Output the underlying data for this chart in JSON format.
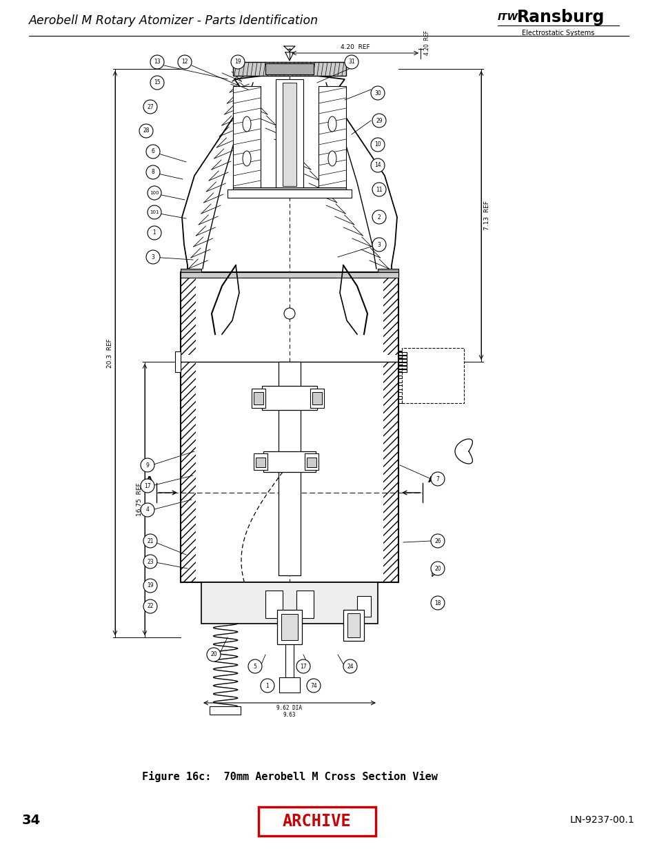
{
  "title": "Aerobell M Rotary Atomizer - Parts Identification",
  "brand_name": "Ransburg",
  "brand_prefix": "ITW",
  "brand_sub": "Electrostatic Systems",
  "figure_caption": "Figure 16c:  70mm Aerobell M Cross Section View",
  "page_number": "34",
  "doc_number": "LN-9237-00.1",
  "archive_text": "ARCHIVE",
  "archive_color": "#CC0000",
  "bg": "#FFFFFF",
  "fg": "#000000",
  "dim_4_20": "4.20  REF",
  "dim_7_13": "7.13  REF",
  "dim_16_75": "16.75  REF",
  "dim_20_3": "20.3  REF",
  "dim_dia": "9.62 DIA\n9.63"
}
